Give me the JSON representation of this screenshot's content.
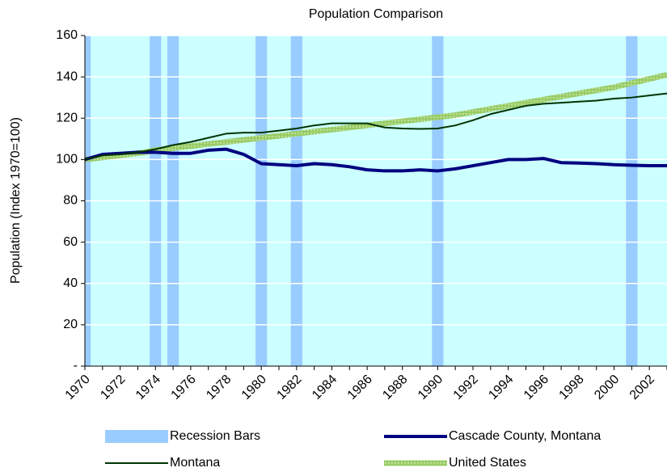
{
  "chart_data": {
    "type": "line",
    "title": "Population Comparison",
    "y_label": "Population (Index 1970=100)",
    "categories": [
      "1970",
      null,
      "1972",
      null,
      "1974",
      null,
      "1976",
      null,
      "1978",
      null,
      "1980",
      null,
      "1982",
      null,
      "1984",
      null,
      "1986",
      null,
      "1988",
      null,
      "1990",
      null,
      "1992",
      null,
      "1994",
      null,
      "1996",
      null,
      "1998",
      null,
      "2000",
      null,
      "2002",
      null
    ],
    "ylim": [
      0,
      160
    ],
    "yticks": [
      {
        "value": 0,
        "label": "-"
      },
      20,
      40,
      60,
      80,
      100,
      120,
      140,
      160
    ],
    "grid": true,
    "plot_background": "#ccffff",
    "series": [
      {
        "name": "Recession Bars",
        "type": "bar",
        "color": "#99ccff",
        "values": [
          160,
          null,
          null,
          null,
          160,
          160,
          null,
          null,
          null,
          null,
          160,
          null,
          160,
          null,
          null,
          null,
          null,
          null,
          null,
          null,
          160,
          null,
          null,
          null,
          null,
          null,
          null,
          null,
          null,
          null,
          null,
          160,
          null,
          null
        ]
      },
      {
        "name": "Cascade County, Montana",
        "type": "line",
        "color": "#000080",
        "values": [
          100,
          102.5,
          103,
          103.5,
          103.5,
          103,
          103,
          104.5,
          105,
          102.5,
          98,
          97.5,
          97,
          98,
          97.5,
          96.5,
          95,
          94.5,
          94.5,
          95,
          94.5,
          95.5,
          97,
          98.5,
          100,
          100,
          100.5,
          98.5,
          98.3,
          98,
          97.5,
          97.2,
          97,
          97
        ]
      },
      {
        "name": "Montana",
        "type": "line",
        "color": "#003300",
        "values": [
          100,
          102,
          102.5,
          103.5,
          105,
          107,
          108.5,
          110.5,
          112.5,
          113,
          113,
          114,
          115,
          116.5,
          117.5,
          117.5,
          117.5,
          115.5,
          115,
          114.8,
          115,
          116.5,
          119,
          122,
          124,
          126,
          127,
          127.5,
          128,
          128.5,
          129.5,
          130,
          131,
          132
        ]
      },
      {
        "name": "United States",
        "type": "line",
        "color": "#99cc66",
        "values": [
          100,
          101,
          102,
          103,
          104.5,
          105.5,
          106.5,
          107.5,
          108.5,
          109.5,
          110.5,
          111.5,
          112.5,
          113.5,
          114.5,
          115.5,
          116.5,
          117.5,
          118.5,
          119.5,
          120.5,
          121.5,
          123,
          124.5,
          126,
          127.5,
          129,
          130.5,
          132,
          133.5,
          135,
          137,
          139,
          141
        ]
      }
    ]
  }
}
